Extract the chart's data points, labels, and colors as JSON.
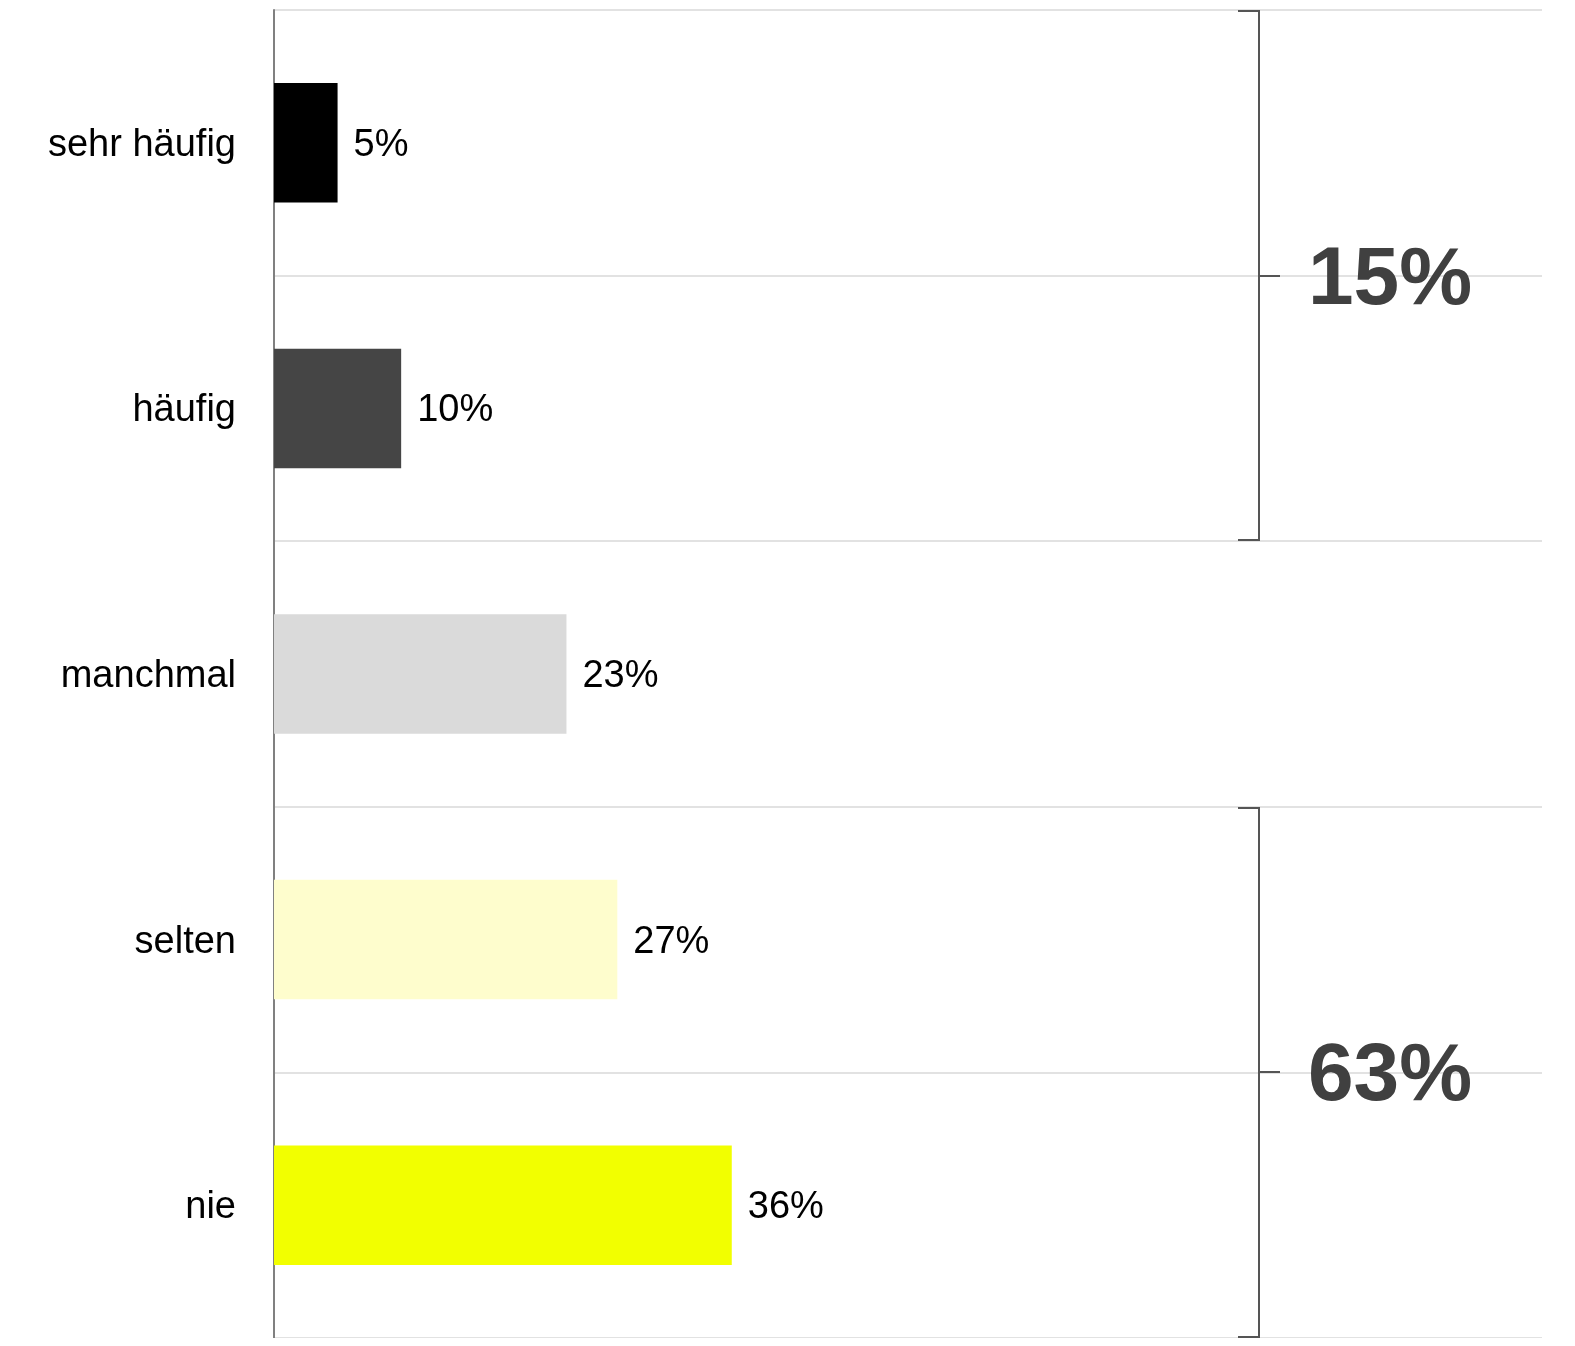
{
  "chart_data": {
    "type": "bar",
    "orientation": "horizontal",
    "categories": [
      "sehr häufig",
      "häufig",
      "manchmal",
      "selten",
      "nie"
    ],
    "values": [
      5,
      10,
      23,
      27,
      36
    ],
    "colors": [
      "#000000",
      "#454545",
      "#dadada",
      "#fefdcd",
      "#f2ff00"
    ],
    "value_labels": [
      "5%",
      "10%",
      "23%",
      "27%",
      "36%"
    ],
    "tick_labels": "y",
    "grid": "y",
    "annotations": [
      "15%",
      "63%"
    ]
  }
}
